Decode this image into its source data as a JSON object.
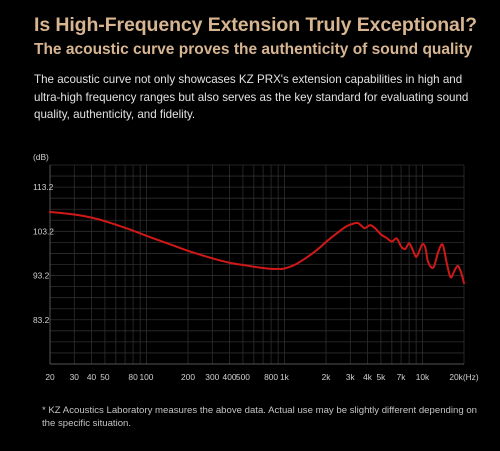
{
  "header": {
    "title": "Is High-Frequency Extension Truly Exceptional?",
    "subtitle": "The acoustic curve proves the authenticity of sound quality",
    "description": "The acoustic curve not only showcases KZ PRX's extension capabilities in high and ultra-high frequency ranges but also serves as the key standard for evaluating sound quality, authenticity, and fidelity."
  },
  "footnote": "* KZ Acoustics Laboratory measures the above data. Actual use may be slightly different depending on the specific situation.",
  "colors": {
    "background": "#000000",
    "accent_gold": "#d7b591",
    "curve": "#d01818",
    "grid": "#2e2e2e"
  },
  "chart_data": {
    "type": "line",
    "title": "",
    "xlabel": "",
    "ylabel": "",
    "y_unit": "(dB)",
    "x_unit_suffix": "(Hz)",
    "x_scale": "log",
    "xlim": [
      20,
      20000
    ],
    "ylim": [
      73.2,
      118.2
    ],
    "grid": true,
    "y_ticks": [
      {
        "value": 113.2,
        "label": "113.2"
      },
      {
        "value": 103.2,
        "label": "103.2"
      },
      {
        "value": 93.2,
        "label": "93.2"
      },
      {
        "value": 83.2,
        "label": "83.2"
      }
    ],
    "x_ticks": [
      {
        "value": 20,
        "label": "20"
      },
      {
        "value": 30,
        "label": "30"
      },
      {
        "value": 40,
        "label": "40"
      },
      {
        "value": 50,
        "label": "50"
      },
      {
        "value": 80,
        "label": "80"
      },
      {
        "value": 100,
        "label": "100"
      },
      {
        "value": 200,
        "label": "200"
      },
      {
        "value": 300,
        "label": "300"
      },
      {
        "value": 400,
        "label": "400"
      },
      {
        "value": 500,
        "label": "500"
      },
      {
        "value": 800,
        "label": "800"
      },
      {
        "value": 1000,
        "label": "1k"
      },
      {
        "value": 2000,
        "label": "2k"
      },
      {
        "value": 3000,
        "label": "3k"
      },
      {
        "value": 4000,
        "label": "4k"
      },
      {
        "value": 5000,
        "label": "5k"
      },
      {
        "value": 7000,
        "label": "7k"
      },
      {
        "value": 10000,
        "label": "10k"
      },
      {
        "value": 20000,
        "label": "20k"
      }
    ],
    "series": [
      {
        "x": [
          20,
          30,
          40,
          50,
          70,
          100,
          150,
          200,
          300,
          400,
          500,
          600,
          700,
          800,
          900,
          1000,
          1200,
          1500,
          1800,
          2000,
          2500,
          2800,
          3000,
          3200,
          3400,
          3600,
          3800,
          4000,
          4200,
          4500,
          4800,
          5000,
          5500,
          6000,
          6500,
          7000,
          7500,
          8000,
          8500,
          9000,
          9500,
          10000,
          10500,
          11000,
          12000,
          13000,
          14000,
          15000,
          16000,
          17000,
          18000,
          19000,
          20000
        ],
        "y": [
          107.6,
          107.0,
          106.3,
          105.5,
          104.0,
          102.2,
          100.2,
          98.8,
          97.1,
          96.1,
          95.6,
          95.2,
          94.9,
          94.7,
          94.7,
          94.8,
          95.7,
          97.6,
          99.5,
          100.8,
          103.2,
          104.3,
          104.7,
          105.0,
          105.1,
          104.5,
          103.9,
          104.3,
          104.6,
          104.0,
          103.1,
          102.5,
          101.7,
          100.9,
          101.6,
          99.8,
          99.2,
          100.5,
          99.0,
          97.4,
          98.8,
          100.3,
          99.5,
          96.2,
          95.0,
          98.5,
          100.2,
          96.0,
          92.8,
          94.2,
          95.4,
          94.0,
          91.5
        ]
      }
    ]
  }
}
